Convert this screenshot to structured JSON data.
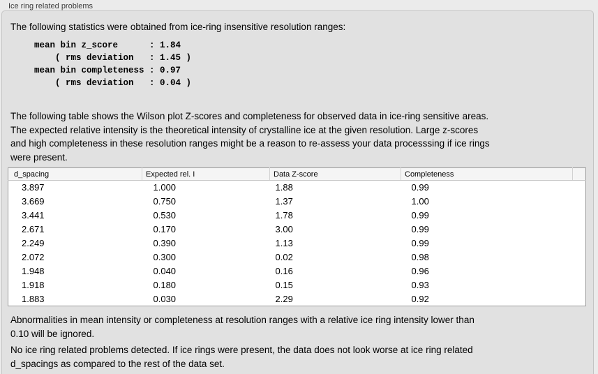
{
  "panel": {
    "title": "Ice ring related problems"
  },
  "intro_text": "The following statistics were obtained from ice-ring insensitive resolution ranges:",
  "stats_block": "mean bin z_score      : 1.84\n    ( rms deviation   : 1.45 )\nmean bin completeness : 0.97\n    ( rms deviation   : 0.04 )",
  "stats": {
    "mean_bin_z_score": "1.84",
    "mean_bin_z_score_rms_deviation": "1.45",
    "mean_bin_completeness": "0.97",
    "mean_bin_completeness_rms_deviation": "0.04"
  },
  "table_description": "The following table shows the Wilson plot Z-scores and completeness for observed data in ice-ring sensitive areas.\nThe expected relative intensity is the theoretical intensity of crystalline ice at the given resolution. Large z-scores\nand high completeness in these resolution ranges might be a reason to re-assess your data processsing if ice rings\nwere present.",
  "table": {
    "columns": [
      "d_spacing",
      "Expected rel. I",
      "Data Z-score",
      "Completeness"
    ],
    "rows": [
      [
        "3.897",
        "1.000",
        "1.88",
        "0.99"
      ],
      [
        "3.669",
        "0.750",
        "1.37",
        "1.00"
      ],
      [
        "3.441",
        "0.530",
        "1.78",
        "0.99"
      ],
      [
        "2.671",
        "0.170",
        "3.00",
        "0.99"
      ],
      [
        "2.249",
        "0.390",
        "1.13",
        "0.99"
      ],
      [
        "2.072",
        "0.300",
        "0.02",
        "0.98"
      ],
      [
        "1.948",
        "0.040",
        "0.16",
        "0.96"
      ],
      [
        "1.918",
        "0.180",
        "0.15",
        "0.93"
      ],
      [
        "1.883",
        "0.030",
        "2.29",
        "0.92"
      ]
    ]
  },
  "ignore_note": "Abnormalities in mean intensity or completeness at resolution ranges with a relative ice ring intensity lower than\n0.10 will be ignored.",
  "conclusion": "No ice ring related problems detected. If ice rings were present, the data does not look worse at ice ring related\nd_spacings as compared to the rest of the data set."
}
